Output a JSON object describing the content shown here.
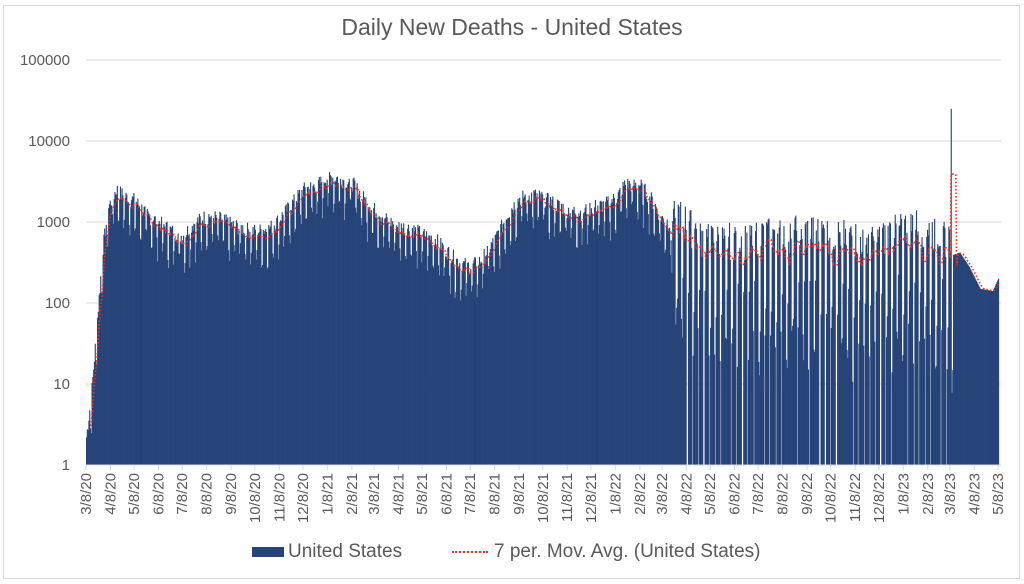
{
  "chart_data": {
    "type": "bar",
    "title": "Daily New Deaths - United States",
    "xlabel": "",
    "ylabel": "",
    "yscale": "log",
    "ylim": [
      1,
      100000
    ],
    "y_ticks": [
      "1",
      "10",
      "100",
      "1000",
      "10000",
      "100000"
    ],
    "grid": true,
    "legend_position": "bottom",
    "x_start": "2020-03-08",
    "x_end": "2023-05-08",
    "x_tick_labels": [
      "3/8/20",
      "4/8/20",
      "5/8/20",
      "6/8/20",
      "7/8/20",
      "8/8/20",
      "9/8/20",
      "10/8/20",
      "11/8/20",
      "12/8/20",
      "1/8/21",
      "2/8/21",
      "3/8/21",
      "4/8/21",
      "5/8/21",
      "6/8/21",
      "7/8/21",
      "8/8/21",
      "9/8/21",
      "10/8/21",
      "11/8/21",
      "12/8/21",
      "1/8/22",
      "2/8/22",
      "3/8/22",
      "4/8/22",
      "5/8/22",
      "6/8/22",
      "7/8/22",
      "8/8/22",
      "9/8/22",
      "10/8/22",
      "11/8/22",
      "12/8/22",
      "1/8/23",
      "2/8/23",
      "3/8/23",
      "4/8/23",
      "5/8/23"
    ],
    "series": [
      {
        "name": "United States",
        "kind": "bar",
        "color": "#264478",
        "note": "Daily values approximated from the 7-day average envelope with weekly reporting dips",
        "anchor_dates": [
          "2020-03-08",
          "2020-03-15",
          "2020-03-22",
          "2020-03-29",
          "2020-04-05",
          "2020-04-15",
          "2020-04-25",
          "2020-05-08",
          "2020-05-25",
          "2020-06-08",
          "2020-06-25",
          "2020-07-08",
          "2020-07-20",
          "2020-08-08",
          "2020-08-25",
          "2020-09-08",
          "2020-09-25",
          "2020-10-08",
          "2020-10-25",
          "2020-11-08",
          "2020-11-25",
          "2020-12-08",
          "2020-12-25",
          "2021-01-08",
          "2021-01-20",
          "2021-02-08",
          "2021-02-20",
          "2021-03-08",
          "2021-03-25",
          "2021-04-08",
          "2021-04-25",
          "2021-05-08",
          "2021-05-25",
          "2021-06-08",
          "2021-06-25",
          "2021-07-08",
          "2021-07-20",
          "2021-08-08",
          "2021-08-25",
          "2021-09-08",
          "2021-09-25",
          "2021-10-08",
          "2021-10-25",
          "2021-11-08",
          "2021-11-25",
          "2021-12-08",
          "2021-12-25",
          "2022-01-08",
          "2022-01-20",
          "2022-02-08",
          "2022-02-20",
          "2022-03-08",
          "2022-03-25",
          "2022-04-08",
          "2022-04-25",
          "2022-05-08",
          "2022-05-25",
          "2022-06-08",
          "2022-06-25",
          "2022-07-08",
          "2022-07-25",
          "2022-08-08",
          "2022-08-25",
          "2022-09-08",
          "2022-09-25",
          "2022-10-08",
          "2022-10-25",
          "2022-11-08",
          "2022-11-25",
          "2022-12-08",
          "2022-12-25",
          "2023-01-08",
          "2023-01-25",
          "2023-02-08",
          "2023-02-25",
          "2023-03-08",
          "2023-03-20",
          "2023-04-01",
          "2023-04-15",
          "2023-05-01",
          "2023-05-08"
        ],
        "anchor_values": [
          2,
          8,
          60,
          450,
          1400,
          2300,
          1900,
          1700,
          1100,
          900,
          700,
          600,
          850,
          1100,
          1000,
          850,
          750,
          700,
          750,
          1000,
          1600,
          2300,
          2600,
          3300,
          3200,
          2800,
          1900,
          1300,
          950,
          800,
          750,
          650,
          550,
          400,
          280,
          260,
          300,
          550,
          1200,
          1800,
          2000,
          1800,
          1500,
          1300,
          1200,
          1400,
          1500,
          1800,
          2700,
          2600,
          1900,
          1000,
          800,
          600,
          400,
          350,
          350,
          380,
          350,
          420,
          420,
          450,
          450,
          450,
          430,
          420,
          400,
          380,
          320,
          350,
          450,
          500,
          550,
          480,
          400,
          380,
          420,
          280,
          150,
          140,
          200
        ]
      },
      {
        "name": "7 per. Mov. Avg. (United States)",
        "kind": "line",
        "color": "#ff2a1a",
        "style": "dotted",
        "note": "Follows the anchor envelope; visible spike to ~4000 around 3/8/23"
      }
    ],
    "annotations": [
      {
        "date": "2023-03-09",
        "value": 25000,
        "note": "single-day reporting spike"
      }
    ]
  },
  "legend": {
    "bar_label": "United States",
    "line_label": "7 per. Mov. Avg. (United States)"
  }
}
